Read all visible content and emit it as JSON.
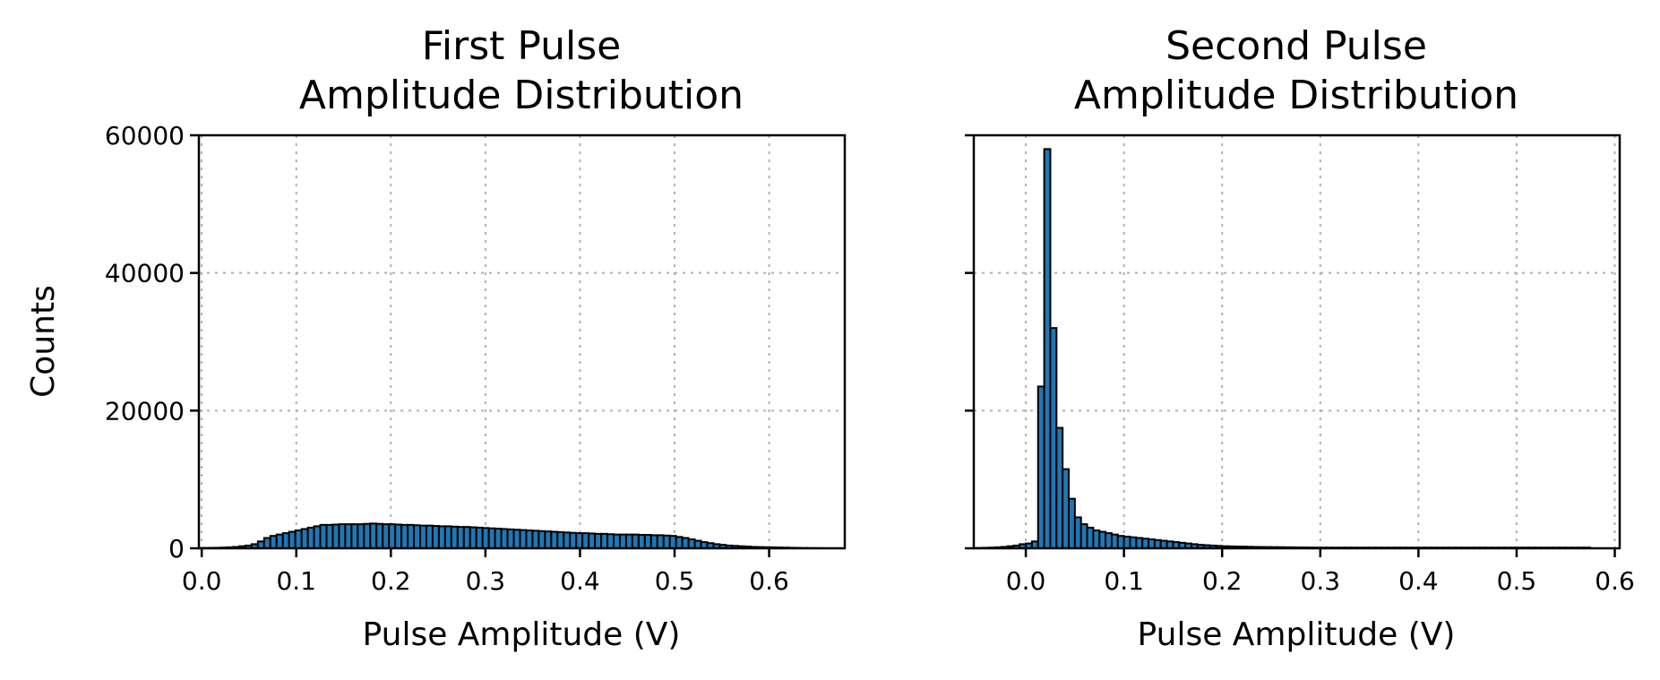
{
  "chart_data": [
    {
      "type": "bar",
      "title_line1": "First Pulse",
      "title_line2": "Amplitude Distribution",
      "xlabel": "Pulse Amplitude (V)",
      "ylabel": "Counts",
      "xlim": [
        -0.003,
        0.68
      ],
      "ylim": [
        0,
        60000
      ],
      "xticks": [
        "0.0",
        "0.1",
        "0.2",
        "0.3",
        "0.4",
        "0.5",
        "0.6"
      ],
      "yticks": [
        "0",
        "20000",
        "40000",
        "60000"
      ],
      "grid": true,
      "bin_start": 0.0,
      "bin_width": 0.0066,
      "values": [
        50,
        60,
        80,
        100,
        150,
        200,
        300,
        400,
        600,
        1000,
        1500,
        1800,
        2000,
        2200,
        2400,
        2600,
        2800,
        3000,
        3200,
        3400,
        3400,
        3450,
        3500,
        3500,
        3500,
        3500,
        3550,
        3600,
        3550,
        3500,
        3500,
        3450,
        3400,
        3400,
        3350,
        3300,
        3300,
        3250,
        3200,
        3200,
        3150,
        3100,
        3100,
        3050,
        3000,
        2950,
        2900,
        2850,
        2800,
        2750,
        2700,
        2650,
        2600,
        2550,
        2500,
        2450,
        2400,
        2350,
        2300,
        2250,
        2200,
        2200,
        2150,
        2100,
        2100,
        2050,
        2000,
        2000,
        2000,
        2000,
        1950,
        1950,
        1900,
        1900,
        1850,
        1800,
        1650,
        1500,
        1300,
        1100,
        900,
        750,
        600,
        500,
        400,
        350,
        300,
        250,
        200,
        180,
        160,
        140,
        120,
        100,
        80,
        60,
        40,
        30,
        20,
        10
      ]
    },
    {
      "type": "bar",
      "title_line1": "Second Pulse",
      "title_line2": "Amplitude Distribution",
      "xlabel": "Pulse Amplitude (V)",
      "ylabel": "",
      "xlim": [
        -0.053,
        0.605
      ],
      "ylim": [
        0,
        60000
      ],
      "xticks": [
        "0.0",
        "0.1",
        "0.2",
        "0.3",
        "0.4",
        "0.5",
        "0.6"
      ],
      "yticks": [
        "0",
        "20000",
        "40000",
        "60000"
      ],
      "grid": true,
      "bin_start": -0.05,
      "bin_width": 0.00625,
      "values": [
        50,
        80,
        100,
        150,
        200,
        300,
        400,
        600,
        700,
        1000,
        23500,
        58000,
        32000,
        17500,
        11500,
        7200,
        4500,
        3500,
        3000,
        2600,
        2400,
        2200,
        2000,
        1800,
        1700,
        1600,
        1500,
        1400,
        1300,
        1200,
        1100,
        1000,
        900,
        800,
        700,
        600,
        500,
        450,
        400,
        350,
        300,
        280,
        260,
        240,
        220,
        200,
        190,
        180,
        170,
        160,
        150,
        140,
        130,
        120,
        110,
        100,
        100,
        100,
        100,
        100,
        100,
        100,
        100,
        100,
        100,
        100,
        100,
        100,
        100,
        100,
        100,
        100,
        100,
        100,
        100,
        100,
        100,
        100,
        100,
        100,
        100,
        100,
        100,
        100,
        100,
        100,
        100,
        100,
        100,
        100,
        100,
        100,
        100,
        100,
        100,
        100,
        100,
        100,
        100,
        100
      ]
    }
  ]
}
